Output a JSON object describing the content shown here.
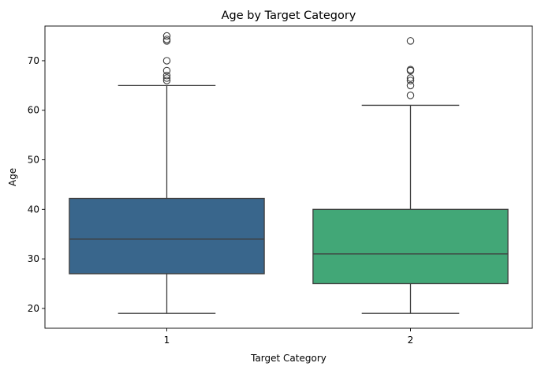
{
  "chart_data": {
    "type": "boxplot",
    "title": "Age by Target Category",
    "xlabel": "Target Category",
    "ylabel": "Age",
    "ylim": [
      16,
      77
    ],
    "yticks": [
      20,
      30,
      40,
      50,
      60,
      70
    ],
    "grid": false,
    "categories": [
      "1",
      "2"
    ],
    "boxes": [
      {
        "category": "1",
        "whisker_low": 19,
        "q1": 27,
        "median": 34,
        "q3": 42.2,
        "whisker_high": 65,
        "outliers": [
          66,
          66.5,
          67,
          68,
          70,
          74,
          74.3,
          75
        ],
        "color": "#39668c"
      },
      {
        "category": "2",
        "whisker_low": 19,
        "q1": 25,
        "median": 31,
        "q3": 40,
        "whisker_high": 61,
        "outliers": [
          63,
          65,
          66,
          66.5,
          68,
          68.2,
          74
        ],
        "color": "#42a777"
      }
    ]
  }
}
